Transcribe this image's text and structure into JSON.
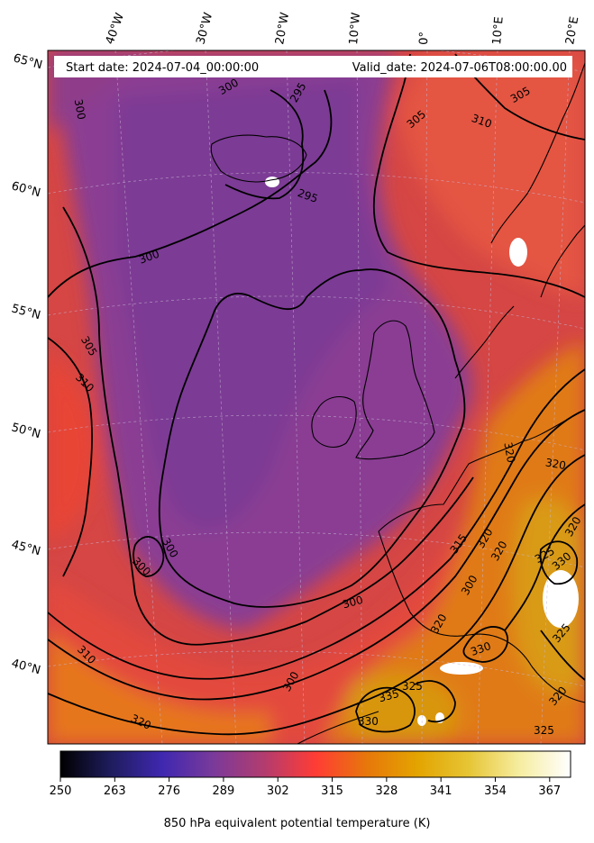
{
  "header": {
    "start_label": "Start date: 2024-07-04_00:00:00",
    "valid_label": "Valid_date: 2024-07-06T08:00:00.00"
  },
  "graticule": {
    "lon_labels": [
      "40°W",
      "30°W",
      "20°W",
      "10°W",
      "0°",
      "10°E",
      "20°E"
    ],
    "lat_labels": [
      "65°N",
      "60°N",
      "55°N",
      "50°N",
      "45°N",
      "40°N"
    ]
  },
  "contours": {
    "labels": [
      "300",
      "295",
      "305",
      "310",
      "300",
      "295",
      "305",
      "300",
      "305",
      "310",
      "300",
      "300",
      "300",
      "300",
      "315",
      "320",
      "320",
      "320",
      "325",
      "330",
      "310",
      "320",
      "300",
      "320",
      "320",
      "330",
      "335",
      "325",
      "330",
      "320",
      "325",
      "320",
      "325"
    ]
  },
  "colorbar": {
    "title": "850 hPa equivalent potential temperature (K)",
    "ticks": [
      "250",
      "263",
      "276",
      "289",
      "302",
      "315",
      "328",
      "341",
      "354",
      "367"
    ],
    "range": [
      250,
      372
    ],
    "colormap": "CMRmap",
    "stops": [
      "#000000",
      "#1f1d5e",
      "#3f28b0",
      "#7a3a9a",
      "#b33c6e",
      "#ff3c35",
      "#e7770b",
      "#e3a400",
      "#e6c535",
      "#f6eda0",
      "#ffffff"
    ]
  },
  "colors": {
    "low": "#7d3a93",
    "mid": "#ce3f52",
    "high": "#e8761a",
    "highest": "#d89a12"
  }
}
